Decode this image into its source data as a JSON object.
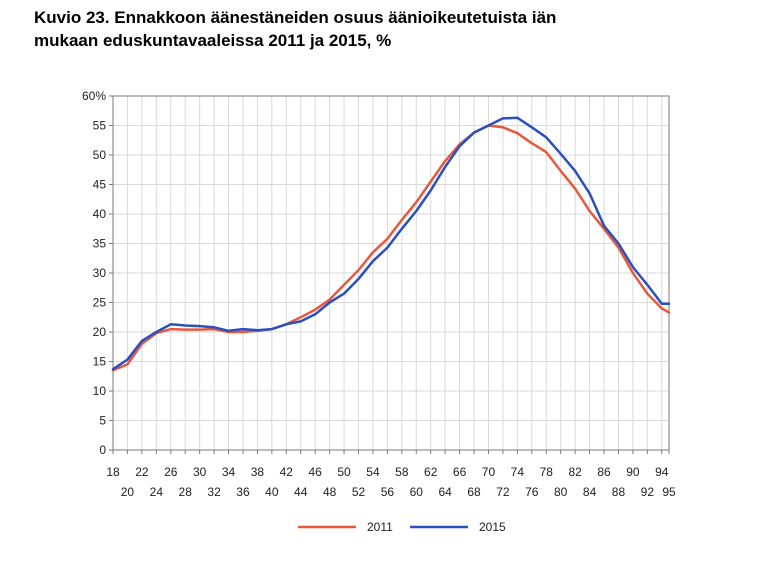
{
  "title_line1": "Kuvio 23. Ennakkoon äänestäneiden osuus äänioikeutetuista iän",
  "title_line2": "mukaan eduskuntavaaleissa 2011 ja 2015, %",
  "chart_data": {
    "type": "line",
    "title": "Kuvio 23. Ennakkoon äänestäneiden osuus äänioikeutetuista iän mukaan eduskuntavaaleissa 2011 ja 2015, %",
    "xlabel": "",
    "ylabel": "",
    "ylim": [
      0,
      60
    ],
    "xlim": [
      18,
      95
    ],
    "y_ticks": [
      "0",
      "5",
      "10",
      "15",
      "20",
      "25",
      "30",
      "35",
      "40",
      "45",
      "50",
      "55",
      "60%"
    ],
    "x_ticks_top": [
      "18",
      "22",
      "26",
      "30",
      "34",
      "38",
      "42",
      "46",
      "50",
      "54",
      "58",
      "62",
      "66",
      "70",
      "74",
      "78",
      "82",
      "86",
      "90",
      "94"
    ],
    "x_ticks_bottom": [
      "20",
      "24",
      "28",
      "32",
      "36",
      "40",
      "44",
      "48",
      "52",
      "56",
      "60",
      "64",
      "68",
      "72",
      "76",
      "80",
      "84",
      "88",
      "92",
      "95"
    ],
    "grid": true,
    "legend_position": "bottom-center",
    "x": [
      18,
      20,
      22,
      24,
      26,
      28,
      30,
      32,
      34,
      36,
      38,
      40,
      42,
      44,
      46,
      48,
      50,
      52,
      54,
      56,
      58,
      60,
      62,
      64,
      66,
      68,
      70,
      72,
      74,
      76,
      78,
      80,
      82,
      84,
      86,
      88,
      90,
      92,
      94,
      95
    ],
    "series": [
      {
        "name": "2011",
        "color": "#e8583c",
        "values": [
          13.5,
          14.5,
          18,
          19.8,
          20.5,
          20.4,
          20.4,
          20.5,
          20,
          20,
          20.2,
          20.5,
          21.3,
          22.5,
          23.8,
          25.5,
          28,
          30.5,
          33.5,
          35.8,
          39,
          42,
          45.5,
          49,
          51.8,
          53.8,
          55,
          54.7,
          53.7,
          52,
          50.5,
          47.3,
          44.3,
          40.5,
          37.5,
          34.3,
          30,
          26.5,
          24,
          23.3
        ],
        "marker": "none"
      },
      {
        "name": "2015",
        "color": "#2b4fbf",
        "values": [
          13.7,
          15.3,
          18.5,
          20,
          21.3,
          21.1,
          21,
          20.8,
          20.2,
          20.5,
          20.3,
          20.5,
          21.3,
          21.8,
          23,
          25,
          26.5,
          29,
          32,
          34.3,
          37.5,
          40.5,
          44,
          48,
          51.5,
          53.8,
          55,
          56.2,
          56.3,
          54.7,
          53,
          50.2,
          47.3,
          43.5,
          38,
          35,
          31,
          28,
          24.8,
          24.8
        ],
        "marker": "none"
      }
    ]
  }
}
